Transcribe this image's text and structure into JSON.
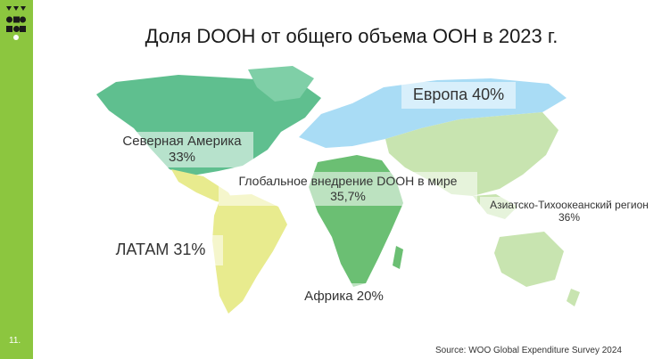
{
  "title": "Доля DOOH от общего объема OOH в 2023 г.",
  "slide_number": "11.",
  "source": "Source: WOO Global Expenditure Survey 2024",
  "brand": {
    "sidebar_color": "#8cc63f",
    "logo_color": "#1a1a1a"
  },
  "regions": {
    "north_america": {
      "name": "Северная Америка",
      "value": "33%",
      "color": "#5fbf8f"
    },
    "europe": {
      "label": "Европа 40%",
      "color": "#a9dcf5"
    },
    "global": {
      "name": "Глобальное внедрение DOOH в мире",
      "value": "35,7%"
    },
    "asia_pacific": {
      "name": "Азиатско-Тихоокеанский регион",
      "value": "36%",
      "color": "#c8e4b0"
    },
    "latam": {
      "label": "ЛАТАМ 31%",
      "color": "#e8eb8e"
    },
    "africa": {
      "label": "Африка 20%",
      "color": "#6bbf73"
    }
  }
}
